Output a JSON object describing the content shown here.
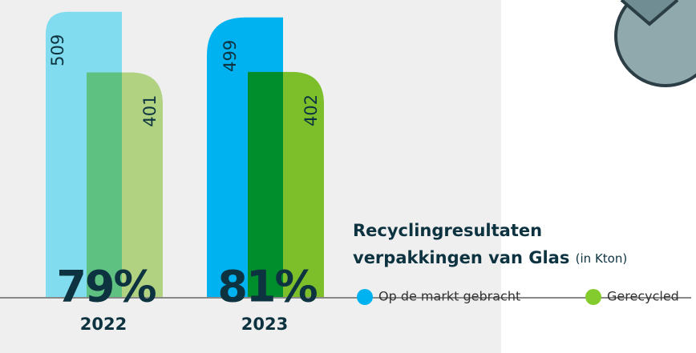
{
  "chart_data": {
    "type": "bar",
    "title": [
      "Recyclingresultaten",
      "verpakkingen van Glas"
    ],
    "unit_note": "(in Kton)",
    "categories": [
      "2022",
      "2023"
    ],
    "series": [
      {
        "name": "Op de markt gebracht",
        "color": [
          "#80dcee",
          "#00b2f0"
        ],
        "values": [
          509,
          499
        ]
      },
      {
        "name": "Gerecycled",
        "color": [
          "#bde08a",
          "#84cc2e"
        ],
        "values": [
          401,
          402
        ]
      }
    ],
    "annotations": [
      "79%",
      "81%"
    ],
    "ylim": [
      0,
      530
    ]
  }
}
